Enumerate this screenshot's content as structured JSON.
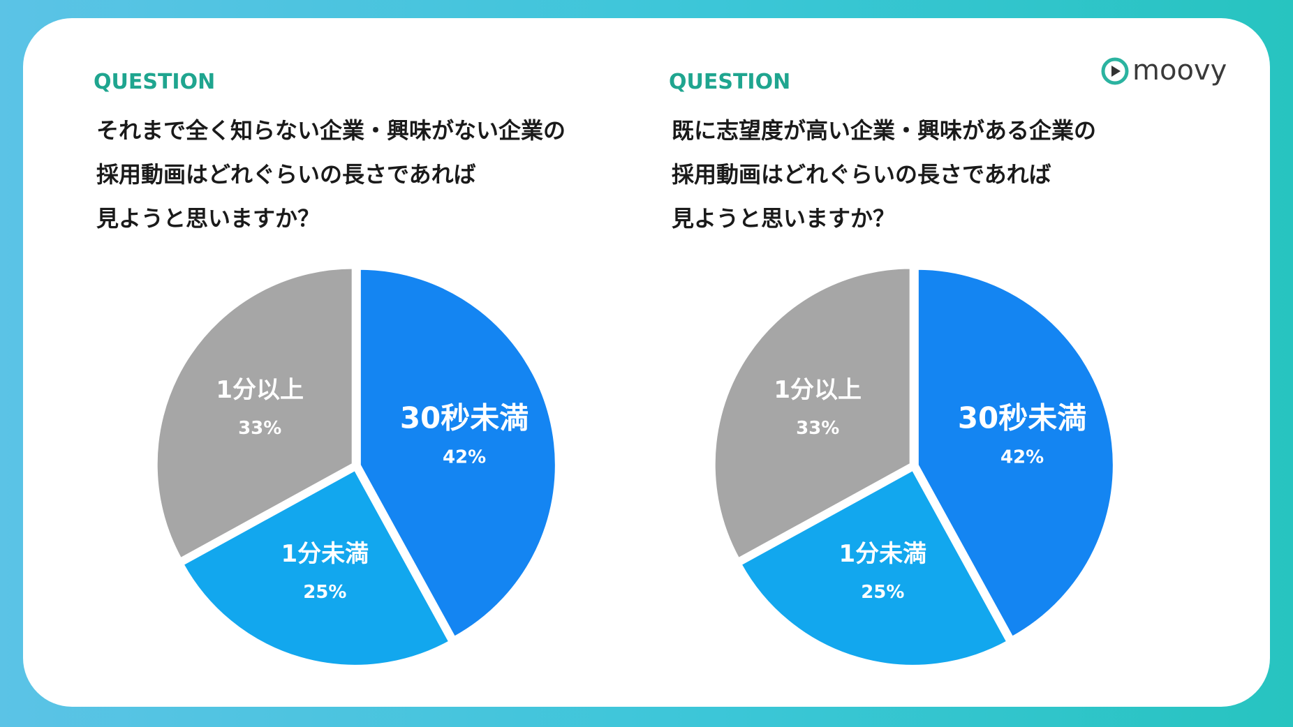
{
  "brand": "moovy",
  "chart_data": [
    {
      "type": "pie",
      "eyebrow": "QUESTION",
      "title_lines": [
        "それまで全く知らない企業・興味がない企業の",
        "採用動画はどれぐらいの長さであれば",
        "見ようと思いますか？"
      ],
      "categories": [
        "30秒未満",
        "1分未満",
        "1分以上"
      ],
      "values": [
        42,
        25,
        33
      ],
      "value_labels": [
        "42%",
        "25%",
        "33%"
      ],
      "colors": [
        "#1485f2",
        "#12a7ee",
        "#a6a6a6"
      ]
    },
    {
      "type": "pie",
      "eyebrow": "QUESTION",
      "title_lines": [
        "既に志望度が高い企業・興味がある企業の",
        "採用動画はどれぐらいの長さであれば",
        "見ようと思いますか？"
      ],
      "categories": [
        "30秒未満",
        "1分未満",
        "1分以上"
      ],
      "values": [
        42,
        25,
        33
      ],
      "value_labels": [
        "42%",
        "25%",
        "33%"
      ],
      "colors": [
        "#1485f2",
        "#12a7ee",
        "#a6a6a6"
      ]
    }
  ]
}
